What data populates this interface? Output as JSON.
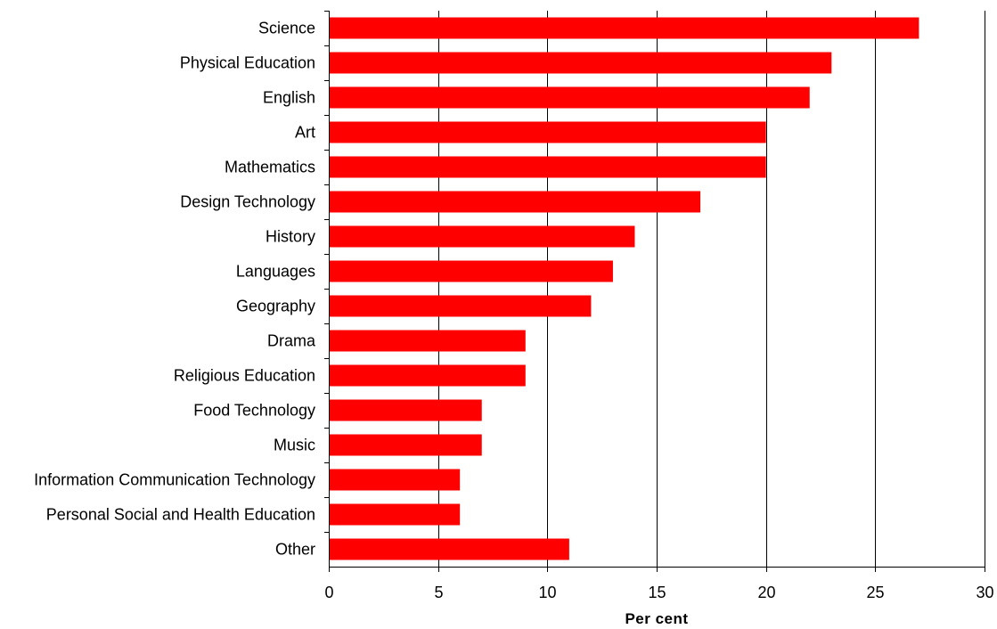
{
  "chart_data": {
    "type": "bar",
    "orientation": "horizontal",
    "categories": [
      "Science",
      "Physical Education",
      "English",
      "Art",
      "Mathematics",
      "Design Technology",
      "History",
      "Languages",
      "Geography",
      "Drama",
      "Religious Education",
      "Food Technology",
      "Music",
      "Information Communication Technology",
      "Personal Social and Health Education",
      "Other"
    ],
    "values": [
      27,
      23,
      22,
      20,
      20,
      17,
      14,
      13,
      12,
      9,
      9,
      7,
      7,
      6,
      6,
      11
    ],
    "title": "",
    "xlabel": "Per cent",
    "ylabel": "",
    "xlim": [
      0,
      30
    ],
    "xticks": [
      "0",
      "5",
      "10",
      "15",
      "20",
      "25",
      "30"
    ],
    "grid": "vertical gridlines",
    "legend": "none",
    "colors": {
      "bar": "#ff0000",
      "gridline": "#000000",
      "axis": "#000000"
    }
  }
}
